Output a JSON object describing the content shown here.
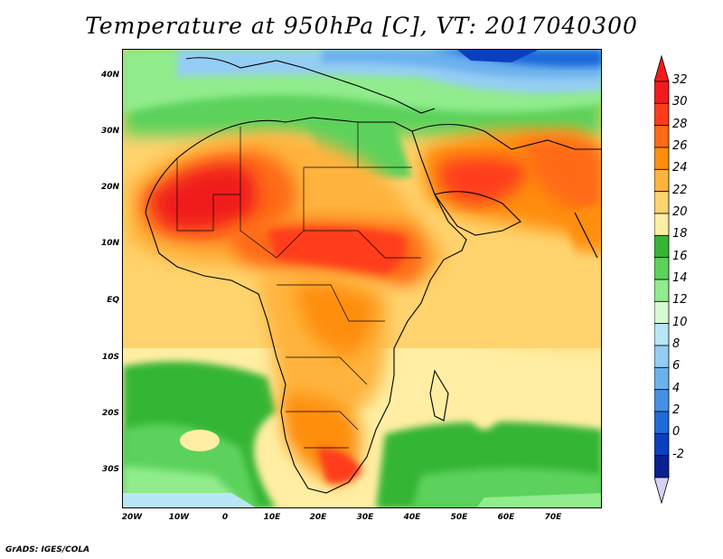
{
  "title": "Temperature at 950hPa [C], VT: 2017040300",
  "credit": "GrADS: IGES/COLA",
  "map": {
    "lon_ticks": [
      "20W",
      "10W",
      "0",
      "10E",
      "20E",
      "30E",
      "40E",
      "50E",
      "60E",
      "70E"
    ],
    "lat_ticks": [
      "40N",
      "30N",
      "20N",
      "10N",
      "EQ",
      "10S",
      "20S",
      "30S"
    ]
  },
  "colorbar": {
    "labels": [
      "32",
      "30",
      "28",
      "26",
      "24",
      "22",
      "20",
      "18",
      "16",
      "14",
      "12",
      "10",
      "8",
      "6",
      "4",
      "2",
      "0",
      "-2"
    ],
    "colors": [
      "#f01c1c",
      "#ff3c1a",
      "#ff6a13",
      "#ff8e0f",
      "#ffb33c",
      "#ffd36e",
      "#ffeea3",
      "#36b535",
      "#5cd25b",
      "#90ec8c",
      "#d6fad2",
      "#b9e6f7",
      "#94cdf3",
      "#6cb0ee",
      "#4690e6",
      "#1f6bd9",
      "#0a3fbf",
      "#0a1f92",
      "#d8d0f4"
    ]
  }
}
